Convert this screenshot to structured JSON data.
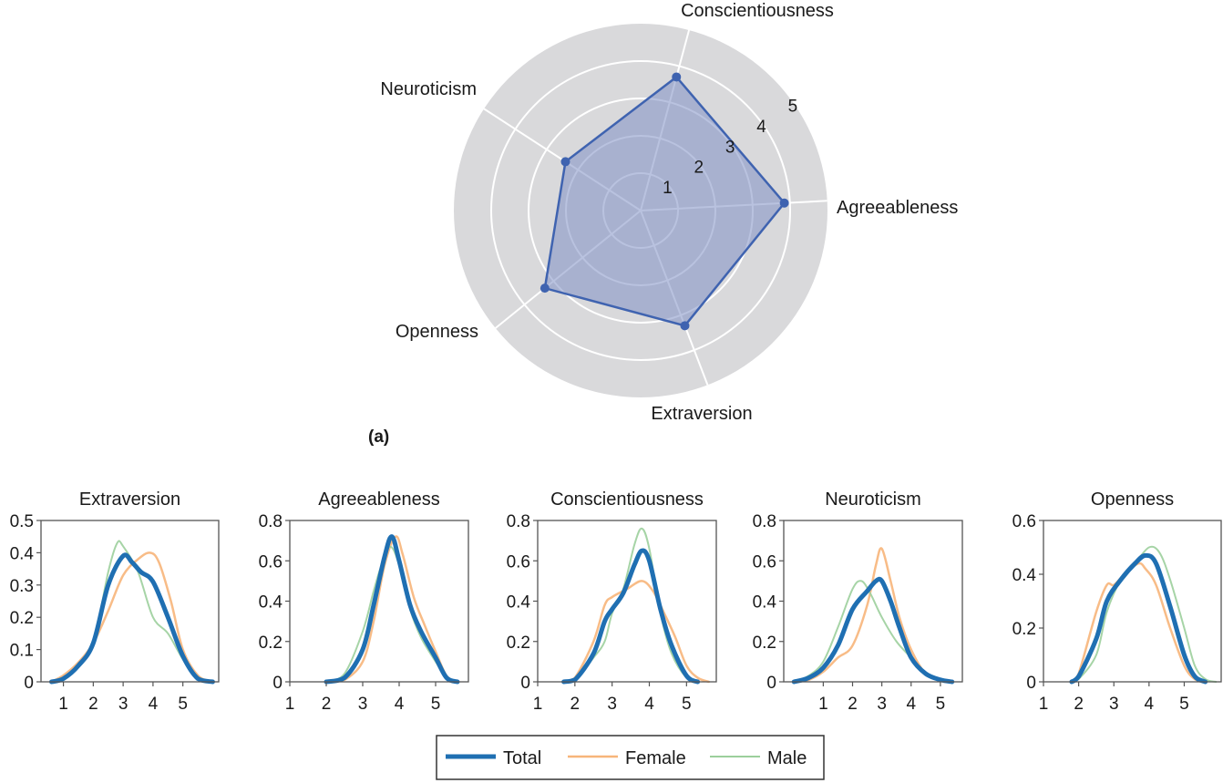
{
  "figure_label": "(a)",
  "colors": {
    "ring_bg": "#d9d9db",
    "grid": "#ffffff",
    "polygon_fill": "#7f8fc4",
    "polygon_stroke": "#3f63b0",
    "total": "#1f6fb2",
    "female": "#f7b57a",
    "male": "#9ccf9c",
    "axis": "#555555"
  },
  "legend": {
    "total": "Total",
    "female": "Female",
    "male": "Male"
  },
  "chart_data": [
    {
      "type": "radar",
      "axes": [
        "Agreeableness",
        "Conscientiousness",
        "Neuroticism",
        "Openness",
        "Extraversion"
      ],
      "values": [
        3.85,
        3.7,
        2.4,
        3.3,
        3.3
      ],
      "rlim": [
        0,
        5
      ],
      "radial_ticks": [
        "1",
        "2",
        "3",
        "4",
        "5"
      ],
      "grid": true
    },
    {
      "type": "line",
      "title": "Extraversion",
      "xticks": [
        "1",
        "2",
        "3",
        "4",
        "5"
      ],
      "yticks": [
        "0",
        "0.1",
        "0.2",
        "0.3",
        "0.4",
        "0.5"
      ],
      "xlim": [
        0.25,
        6.2
      ],
      "ylim": [
        0,
        0.5
      ],
      "series": [
        {
          "name": "Total",
          "x": [
            0.6,
            1,
            1.5,
            2,
            2.5,
            3,
            3.3,
            3.6,
            4,
            4.5,
            5,
            5.5,
            6
          ],
          "y": [
            0,
            0.01,
            0.05,
            0.12,
            0.3,
            0.39,
            0.37,
            0.34,
            0.31,
            0.2,
            0.08,
            0.01,
            0
          ]
        },
        {
          "name": "Female",
          "x": [
            0.6,
            1,
            1.5,
            2,
            2.5,
            3,
            3.5,
            3.9,
            4.2,
            4.6,
            5,
            5.5,
            6
          ],
          "y": [
            0,
            0.02,
            0.06,
            0.12,
            0.22,
            0.33,
            0.38,
            0.4,
            0.37,
            0.25,
            0.1,
            0.02,
            0
          ]
        },
        {
          "name": "Male",
          "x": [
            0.6,
            1,
            1.5,
            2,
            2.5,
            2.8,
            3,
            3.5,
            4,
            4.5,
            5,
            5.5,
            6
          ],
          "y": [
            0,
            0.01,
            0.05,
            0.12,
            0.34,
            0.43,
            0.42,
            0.34,
            0.2,
            0.15,
            0.07,
            0.01,
            0
          ]
        }
      ]
    },
    {
      "type": "line",
      "title": "Agreeableness",
      "xticks": [
        "1",
        "2",
        "3",
        "4",
        "5"
      ],
      "yticks": [
        "0",
        "0.2",
        "0.4",
        "0.6",
        "0.8"
      ],
      "xlim": [
        1,
        5.9
      ],
      "ylim": [
        0,
        0.8
      ],
      "series": [
        {
          "name": "Total",
          "x": [
            2,
            2.5,
            3,
            3.3,
            3.6,
            3.8,
            4,
            4.3,
            4.6,
            5,
            5.3,
            5.6
          ],
          "y": [
            0,
            0.02,
            0.16,
            0.38,
            0.62,
            0.72,
            0.6,
            0.38,
            0.25,
            0.12,
            0.02,
            0
          ]
        },
        {
          "name": "Female",
          "x": [
            2,
            2.5,
            3,
            3.3,
            3.6,
            3.9,
            4.1,
            4.4,
            4.7,
            5,
            5.3,
            5.6
          ],
          "y": [
            0,
            0.01,
            0.1,
            0.3,
            0.58,
            0.72,
            0.63,
            0.42,
            0.28,
            0.15,
            0.03,
            0
          ]
        },
        {
          "name": "Male",
          "x": [
            2,
            2.5,
            3,
            3.3,
            3.5,
            3.75,
            4,
            4.3,
            4.6,
            5,
            5.3,
            5.6
          ],
          "y": [
            0,
            0.04,
            0.25,
            0.45,
            0.57,
            0.67,
            0.58,
            0.36,
            0.22,
            0.1,
            0.02,
            0
          ]
        }
      ]
    },
    {
      "type": "line",
      "title": "Conscientiousness",
      "xticks": [
        "1",
        "2",
        "3",
        "4",
        "5"
      ],
      "yticks": [
        "0",
        "0.2",
        "0.4",
        "0.6",
        "0.8"
      ],
      "xlim": [
        1,
        5.8
      ],
      "ylim": [
        0,
        0.8
      ],
      "series": [
        {
          "name": "Total",
          "x": [
            1.7,
            2,
            2.5,
            2.8,
            3,
            3.3,
            3.6,
            3.8,
            4,
            4.3,
            4.6,
            5,
            5.3
          ],
          "y": [
            0,
            0.01,
            0.14,
            0.3,
            0.36,
            0.44,
            0.58,
            0.65,
            0.6,
            0.36,
            0.18,
            0.03,
            0
          ]
        },
        {
          "name": "Female",
          "x": [
            1.7,
            2,
            2.5,
            2.8,
            3,
            3.4,
            3.8,
            4.1,
            4.4,
            4.7,
            5,
            5.3,
            5.6
          ],
          "y": [
            0,
            0.02,
            0.2,
            0.38,
            0.42,
            0.46,
            0.5,
            0.45,
            0.34,
            0.22,
            0.08,
            0.02,
            0
          ]
        },
        {
          "name": "Male",
          "x": [
            1.7,
            2,
            2.5,
            2.8,
            3,
            3.3,
            3.6,
            3.8,
            4,
            4.3,
            4.6,
            5,
            5.3
          ],
          "y": [
            0,
            0.01,
            0.12,
            0.2,
            0.34,
            0.46,
            0.68,
            0.76,
            0.66,
            0.34,
            0.14,
            0.02,
            0
          ]
        }
      ]
    },
    {
      "type": "line",
      "title": "Neuroticism",
      "xticks": [
        "1",
        "2",
        "3",
        "4",
        "5"
      ],
      "yticks": [
        "0",
        "0.2",
        "0.4",
        "0.6",
        "0.8"
      ],
      "xlim": [
        -0.35,
        5.75
      ],
      "ylim": [
        0,
        0.8
      ],
      "series": [
        {
          "name": "Total",
          "x": [
            0,
            0.5,
            1,
            1.5,
            2,
            2.5,
            2.8,
            3,
            3.3,
            3.6,
            4,
            4.5,
            5,
            5.4
          ],
          "y": [
            0,
            0.02,
            0.07,
            0.18,
            0.36,
            0.45,
            0.5,
            0.5,
            0.4,
            0.27,
            0.12,
            0.04,
            0.01,
            0
          ]
        },
        {
          "name": "Female",
          "x": [
            0,
            0.5,
            1,
            1.5,
            2,
            2.5,
            2.8,
            3,
            3.3,
            3.6,
            4,
            4.5,
            5,
            5.4
          ],
          "y": [
            0,
            0.01,
            0.05,
            0.12,
            0.18,
            0.38,
            0.58,
            0.66,
            0.5,
            0.32,
            0.16,
            0.04,
            0.01,
            0
          ]
        },
        {
          "name": "Male",
          "x": [
            0,
            0.5,
            1,
            1.5,
            2,
            2.3,
            2.6,
            3,
            3.5,
            4,
            4.5,
            5,
            5.4
          ],
          "y": [
            0,
            0.03,
            0.1,
            0.27,
            0.46,
            0.5,
            0.44,
            0.32,
            0.2,
            0.12,
            0.04,
            0.01,
            0
          ]
        }
      ]
    },
    {
      "type": "line",
      "title": "Openness",
      "xticks": [
        "1",
        "2",
        "3",
        "4",
        "5"
      ],
      "yticks": [
        "0",
        "0.2",
        "0.4",
        "0.6"
      ],
      "xlim": [
        1,
        6.05
      ],
      "ylim": [
        0,
        0.6
      ],
      "series": [
        {
          "name": "Total",
          "x": [
            1.8,
            2,
            2.5,
            2.8,
            3.2,
            3.6,
            3.9,
            4.2,
            4.6,
            5,
            5.3,
            5.6
          ],
          "y": [
            0,
            0.02,
            0.16,
            0.3,
            0.38,
            0.44,
            0.47,
            0.44,
            0.28,
            0.1,
            0.02,
            0
          ]
        },
        {
          "name": "Female",
          "x": [
            1.8,
            2,
            2.5,
            2.8,
            3,
            3.3,
            3.7,
            3.9,
            4.2,
            4.6,
            5,
            5.3,
            5.6
          ],
          "y": [
            0,
            0.03,
            0.26,
            0.36,
            0.36,
            0.4,
            0.44,
            0.42,
            0.36,
            0.2,
            0.06,
            0.01,
            0
          ]
        },
        {
          "name": "Male",
          "x": [
            1.8,
            2,
            2.5,
            2.8,
            3.2,
            3.6,
            4,
            4.3,
            4.6,
            5,
            5.3,
            5.6,
            5.9
          ],
          "y": [
            0,
            0.01,
            0.1,
            0.26,
            0.38,
            0.44,
            0.5,
            0.48,
            0.38,
            0.2,
            0.06,
            0.01,
            0
          ]
        }
      ]
    }
  ]
}
